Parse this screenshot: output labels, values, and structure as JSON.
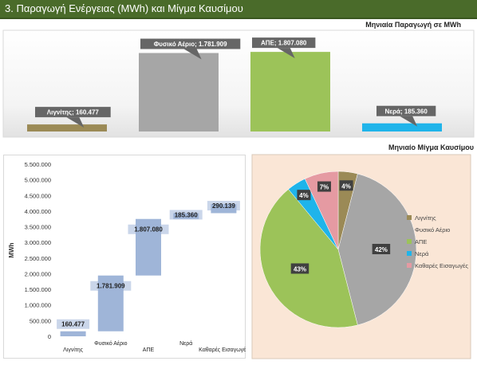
{
  "header": {
    "title": "3. Παραγωγή Ενέργειας (MWh) και Μίγμα Καυσίμου"
  },
  "colors": {
    "header_bg": "#4a6b2a",
    "lignite": "#9b8a56",
    "gas": "#a6a6a6",
    "res": "#9cc359",
    "water": "#1fb4ea",
    "imports": "#e59aa2",
    "waterfall": "#9fb5d8",
    "pie_bg": "#fae6d6"
  },
  "chart_data": [
    {
      "type": "bar",
      "title": "Μηνιαία Παραγωγή σε MWh",
      "categories": [
        "Λιγνίτης",
        "Φυσικό Αέριο",
        "ΑΠΕ",
        "Νερά"
      ],
      "values": [
        160477,
        1781909,
        1807080,
        185360
      ],
      "data_labels": [
        "Λιγνίτης; 160.477",
        "Φυσικό Αέριο; 1.781.909",
        "ΑΠΕ; 1.807.080",
        "Νερά; 185.360"
      ],
      "ylim": [
        0,
        1900000
      ]
    },
    {
      "type": "bar",
      "subtype": "waterfall",
      "categories": [
        "Λιγνίτης",
        "Φυσικό Αέριο",
        "ΑΠΕ",
        "Νερά",
        "Καθαρές Εισαγωγές"
      ],
      "values": [
        160477,
        1781909,
        1807080,
        185360,
        290139
      ],
      "data_labels": [
        "160.477",
        "1.781.909",
        "1.807.080",
        "185.360",
        "290.139"
      ],
      "ylabel": "MWh",
      "ylim": [
        0,
        5500000
      ],
      "yticks": [
        "0",
        "500.000",
        "1.000.000",
        "1.500.000",
        "2.000.000",
        "2.500.000",
        "3.000.000",
        "3.500.000",
        "4.000.000",
        "4.500.000",
        "5.000.000",
        "5.500.000"
      ]
    },
    {
      "type": "pie",
      "title": "Μηνιαίο Μίγμα Καυσίμου",
      "legend_position": "right",
      "slices": [
        {
          "name": "Λιγνίτης",
          "value": 4,
          "label": "4%"
        },
        {
          "name": "Φυσικό Αέριο",
          "value": 42,
          "label": "42%"
        },
        {
          "name": "ΑΠΕ",
          "value": 43,
          "label": "43%"
        },
        {
          "name": "Νερά",
          "value": 4,
          "label": "4%"
        },
        {
          "name": "Καθαρές Εισαγωγές",
          "value": 7,
          "label": "7%"
        }
      ]
    }
  ]
}
